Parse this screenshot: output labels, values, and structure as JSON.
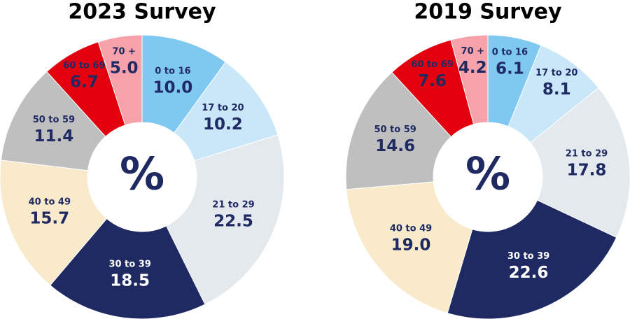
{
  "chart_data": [
    {
      "type": "pie",
      "title": "2023 Survey",
      "center_label": "%",
      "categories": [
        "0 to 16",
        "17 to 20",
        "21 to 29",
        "30 to 39",
        "40 to 49",
        "50 to 59",
        "60 to 69",
        "70 +"
      ],
      "values": [
        10.0,
        10.2,
        22.5,
        18.5,
        15.7,
        11.4,
        6.7,
        5.0
      ],
      "value_labels": [
        "10.0",
        "10.2",
        "22.5",
        "18.5",
        "15.7",
        "11.4",
        "6.7",
        "5.0"
      ],
      "colors": [
        "#7fc8ef",
        "#c9e7f8",
        "#e4e9ee",
        "#1f2a63",
        "#f9eacb",
        "#bfbfbf",
        "#e3000f",
        "#f7a1aa"
      ]
    },
    {
      "type": "pie",
      "title": "2019 Survey",
      "center_label": "%",
      "categories": [
        "0 to 16",
        "17 to 20",
        "21 to 29",
        "30 to 39",
        "40 to 49",
        "50 to 59",
        "60 to 69",
        "70 +"
      ],
      "values": [
        6.1,
        8.1,
        17.8,
        22.6,
        19.0,
        14.6,
        7.6,
        4.2
      ],
      "value_labels": [
        "6.1",
        "8.1",
        "17.8",
        "22.6",
        "19.0",
        "14.6",
        "7.6",
        "4.2"
      ],
      "colors": [
        "#7fc8ef",
        "#c9e7f8",
        "#e4e9ee",
        "#1f2a63",
        "#f9eacb",
        "#bfbfbf",
        "#e3000f",
        "#f7a1aa"
      ]
    }
  ]
}
